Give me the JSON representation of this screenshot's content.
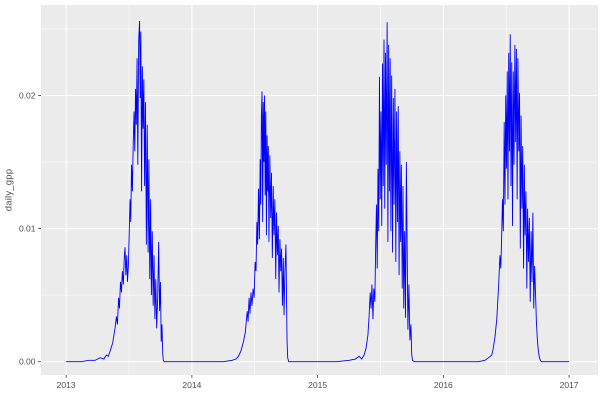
{
  "chart_data": {
    "type": "line",
    "title": "",
    "xlabel": "",
    "ylabel": "daily_gpp",
    "series_name": "daily_gpp",
    "legend": "none",
    "grid": "on",
    "style": "ggplot2",
    "line_color": "#0000ff",
    "panel_bg": "#ebebeb",
    "grid_color": "#ffffff",
    "axis_text_color": "#4d4d4d",
    "tick_mark_color": "#333333",
    "x_domain": [
      2012.8,
      2017.23
    ],
    "y_domain": [
      -0.001,
      0.0268
    ],
    "x_major_breaks": [
      2013,
      2014,
      2015,
      2016,
      2017
    ],
    "x_major_labels": [
      "2013",
      "2014",
      "2015",
      "2016",
      "2017"
    ],
    "x_minor_breaks": [
      2013.5,
      2014.5,
      2015.5,
      2016.5
    ],
    "y_major_breaks": [
      0,
      0.01,
      0.02
    ],
    "y_major_labels": [
      "0.00",
      "0.01",
      "0.02"
    ],
    "y_minor_breaks": [
      0.005,
      0.015,
      0.025
    ],
    "points": [
      [
        2013.0,
        0
      ],
      [
        2013.06,
        0
      ],
      [
        2013.12,
        0
      ],
      [
        2013.18,
        0.0001
      ],
      [
        2013.23,
        0.0001
      ],
      [
        2013.27,
        0.0003
      ],
      [
        2013.3,
        0.0002
      ],
      [
        2013.32,
        0.0005
      ],
      [
        2013.335,
        0.0004
      ],
      [
        2013.35,
        0.0008
      ],
      [
        2013.37,
        0.0014
      ],
      [
        2013.39,
        0.0026
      ],
      [
        2013.4,
        0.0034
      ],
      [
        2013.408,
        0.0028
      ],
      [
        2013.417,
        0.0048
      ],
      [
        2013.424,
        0.004
      ],
      [
        2013.432,
        0.006
      ],
      [
        2013.44,
        0.0052
      ],
      [
        2013.447,
        0.0068
      ],
      [
        2013.455,
        0.0058
      ],
      [
        2013.462,
        0.0078
      ],
      [
        2013.468,
        0.0086
      ],
      [
        2013.475,
        0.0065
      ],
      [
        2013.482,
        0.008
      ],
      [
        2013.488,
        0.006
      ],
      [
        2013.495,
        0.0072
      ],
      [
        2013.502,
        0.0098
      ],
      [
        2013.508,
        0.0122
      ],
      [
        2013.514,
        0.0105
      ],
      [
        2013.52,
        0.0148
      ],
      [
        2013.527,
        0.0128
      ],
      [
        2013.533,
        0.0162
      ],
      [
        2013.54,
        0.0188
      ],
      [
        2013.546,
        0.0158
      ],
      [
        2013.552,
        0.0205
      ],
      [
        2013.558,
        0.0178
      ],
      [
        2013.564,
        0.0228
      ],
      [
        2013.57,
        0.0148
      ],
      [
        2013.577,
        0.0242
      ],
      [
        2013.584,
        0.0256
      ],
      [
        2013.589,
        0.0198
      ],
      [
        2013.594,
        0.0248
      ],
      [
        2013.6,
        0.0128
      ],
      [
        2013.606,
        0.0222
      ],
      [
        2013.612,
        0.0175
      ],
      [
        2013.618,
        0.0212
      ],
      [
        2013.624,
        0.0132
      ],
      [
        2013.631,
        0.0195
      ],
      [
        2013.638,
        0.0088
      ],
      [
        2013.645,
        0.0178
      ],
      [
        2013.652,
        0.0082
      ],
      [
        2013.658,
        0.0152
      ],
      [
        2013.665,
        0.0062
      ],
      [
        2013.672,
        0.0122
      ],
      [
        2013.678,
        0.005
      ],
      [
        2013.685,
        0.0098
      ],
      [
        2013.692,
        0.0042
      ],
      [
        2013.699,
        0.008
      ],
      [
        2013.706,
        0.0032
      ],
      [
        2013.713,
        0.0062
      ],
      [
        2013.72,
        0.0025
      ],
      [
        2013.728,
        0.0048
      ],
      [
        2013.736,
        0.009
      ],
      [
        2013.743,
        0.0038
      ],
      [
        2013.75,
        0.006
      ],
      [
        2013.756,
        0.0015
      ],
      [
        2013.762,
        0.0028
      ],
      [
        2013.768,
        0.0006
      ],
      [
        2013.773,
        0.0001
      ],
      [
        2013.78,
        0
      ],
      [
        2013.85,
        0
      ],
      [
        2013.95,
        0
      ],
      [
        2014.05,
        0
      ],
      [
        2014.15,
        0
      ],
      [
        2014.25,
        0
      ],
      [
        2014.32,
        0.0001
      ],
      [
        2014.35,
        0.0002
      ],
      [
        2014.37,
        0.0004
      ],
      [
        2014.39,
        0.0008
      ],
      [
        2014.41,
        0.0015
      ],
      [
        2014.425,
        0.0022
      ],
      [
        2014.44,
        0.0038
      ],
      [
        2014.447,
        0.003
      ],
      [
        2014.455,
        0.0048
      ],
      [
        2014.462,
        0.0036
      ],
      [
        2014.47,
        0.0052
      ],
      [
        2014.478,
        0.0042
      ],
      [
        2014.487,
        0.0055
      ],
      [
        2014.495,
        0.0048
      ],
      [
        2014.503,
        0.0075
      ],
      [
        2014.51,
        0.0068
      ],
      [
        2014.517,
        0.0105
      ],
      [
        2014.523,
        0.0088
      ],
      [
        2014.53,
        0.013
      ],
      [
        2014.537,
        0.0092
      ],
      [
        2014.543,
        0.0152
      ],
      [
        2014.548,
        0.0118
      ],
      [
        2014.553,
        0.0185
      ],
      [
        2014.558,
        0.0203
      ],
      [
        2014.563,
        0.0105
      ],
      [
        2014.568,
        0.0195
      ],
      [
        2014.573,
        0.015
      ],
      [
        2014.578,
        0.02
      ],
      [
        2014.583,
        0.0125
      ],
      [
        2014.588,
        0.0188
      ],
      [
        2014.593,
        0.0095
      ],
      [
        2014.598,
        0.017
      ],
      [
        2014.603,
        0.0128
      ],
      [
        2014.608,
        0.0162
      ],
      [
        2014.613,
        0.009
      ],
      [
        2014.62,
        0.0155
      ],
      [
        2014.627,
        0.0108
      ],
      [
        2014.633,
        0.0142
      ],
      [
        2014.64,
        0.0078
      ],
      [
        2014.647,
        0.0132
      ],
      [
        2014.653,
        0.0095
      ],
      [
        2014.66,
        0.0122
      ],
      [
        2014.667,
        0.0062
      ],
      [
        2014.673,
        0.0112
      ],
      [
        2014.68,
        0.008
      ],
      [
        2014.687,
        0.0102
      ],
      [
        2014.693,
        0.0052
      ],
      [
        2014.7,
        0.0092
      ],
      [
        2014.707,
        0.0068
      ],
      [
        2014.713,
        0.0085
      ],
      [
        2014.72,
        0.0042
      ],
      [
        2014.727,
        0.0078
      ],
      [
        2014.733,
        0.0035
      ],
      [
        2014.74,
        0.0068
      ],
      [
        2014.748,
        0.0088
      ],
      [
        2014.753,
        0.0045
      ],
      [
        2014.757,
        0.0015
      ],
      [
        2014.762,
        0.0003
      ],
      [
        2014.77,
        0
      ],
      [
        2014.87,
        0
      ],
      [
        2014.97,
        0
      ],
      [
        2015.05,
        0
      ],
      [
        2015.15,
        0
      ],
      [
        2015.25,
        0.0001
      ],
      [
        2015.3,
        0.0002
      ],
      [
        2015.33,
        0.0004
      ],
      [
        2015.35,
        0.0002
      ],
      [
        2015.37,
        0.0005
      ],
      [
        2015.385,
        0.001
      ],
      [
        2015.4,
        0.002
      ],
      [
        2015.41,
        0.0035
      ],
      [
        2015.418,
        0.0052
      ],
      [
        2015.425,
        0.004
      ],
      [
        2015.432,
        0.0058
      ],
      [
        2015.44,
        0.0032
      ],
      [
        2015.447,
        0.0055
      ],
      [
        2015.455,
        0.0045
      ],
      [
        2015.462,
        0.0088
      ],
      [
        2015.468,
        0.0118
      ],
      [
        2015.474,
        0.007
      ],
      [
        2015.48,
        0.0145
      ],
      [
        2015.486,
        0.0098
      ],
      [
        2015.492,
        0.0214
      ],
      [
        2015.498,
        0.0122
      ],
      [
        2015.504,
        0.0188
      ],
      [
        2015.51,
        0.0102
      ],
      [
        2015.516,
        0.0224
      ],
      [
        2015.522,
        0.0132
      ],
      [
        2015.528,
        0.0242
      ],
      [
        2015.534,
        0.0115
      ],
      [
        2015.54,
        0.0232
      ],
      [
        2015.546,
        0.0148
      ],
      [
        2015.553,
        0.0255
      ],
      [
        2015.559,
        0.009
      ],
      [
        2015.565,
        0.0238
      ],
      [
        2015.571,
        0.0128
      ],
      [
        2015.577,
        0.0228
      ],
      [
        2015.583,
        0.0098
      ],
      [
        2015.589,
        0.0215
      ],
      [
        2015.596,
        0.0082
      ],
      [
        2015.602,
        0.0198
      ],
      [
        2015.608,
        0.0118
      ],
      [
        2015.615,
        0.0205
      ],
      [
        2015.622,
        0.0075
      ],
      [
        2015.628,
        0.0188
      ],
      [
        2015.635,
        0.0105
      ],
      [
        2015.641,
        0.0192
      ],
      [
        2015.648,
        0.0065
      ],
      [
        2015.654,
        0.0158
      ],
      [
        2015.66,
        0.009
      ],
      [
        2015.666,
        0.0148
      ],
      [
        2015.673,
        0.0055
      ],
      [
        2015.679,
        0.0132
      ],
      [
        2015.685,
        0.004
      ],
      [
        2015.692,
        0.0098
      ],
      [
        2015.699,
        0.0033
      ],
      [
        2015.706,
        0.015
      ],
      [
        2015.712,
        0.0088
      ],
      [
        2015.718,
        0.0024
      ],
      [
        2015.726,
        0.0058
      ],
      [
        2015.734,
        0.0016
      ],
      [
        2015.742,
        0.0028
      ],
      [
        2015.748,
        0.0006
      ],
      [
        2015.755,
        0.0001
      ],
      [
        2015.77,
        0
      ],
      [
        2015.88,
        0
      ],
      [
        2015.97,
        0
      ],
      [
        2016.08,
        0
      ],
      [
        2016.18,
        0
      ],
      [
        2016.28,
        0
      ],
      [
        2016.33,
        0.0001
      ],
      [
        2016.36,
        0.0003
      ],
      [
        2016.385,
        0.0005
      ],
      [
        2016.395,
        0.0009
      ],
      [
        2016.41,
        0.0018
      ],
      [
        2016.425,
        0.0032
      ],
      [
        2016.44,
        0.0058
      ],
      [
        2016.45,
        0.008
      ],
      [
        2016.457,
        0.007
      ],
      [
        2016.464,
        0.0095
      ],
      [
        2016.47,
        0.0122
      ],
      [
        2016.477,
        0.0098
      ],
      [
        2016.484,
        0.018
      ],
      [
        2016.49,
        0.0118
      ],
      [
        2016.496,
        0.02
      ],
      [
        2016.502,
        0.0145
      ],
      [
        2016.508,
        0.0218
      ],
      [
        2016.514,
        0.0122
      ],
      [
        2016.52,
        0.0232
      ],
      [
        2016.526,
        0.0158
      ],
      [
        2016.532,
        0.0246
      ],
      [
        2016.538,
        0.0132
      ],
      [
        2016.544,
        0.0225
      ],
      [
        2016.55,
        0.0102
      ],
      [
        2016.556,
        0.0218
      ],
      [
        2016.562,
        0.0148
      ],
      [
        2016.569,
        0.0238
      ],
      [
        2016.575,
        0.0165
      ],
      [
        2016.581,
        0.0235
      ],
      [
        2016.587,
        0.0122
      ],
      [
        2016.593,
        0.0228
      ],
      [
        2016.6,
        0.0158
      ],
      [
        2016.606,
        0.0202
      ],
      [
        2016.612,
        0.0085
      ],
      [
        2016.618,
        0.0185
      ],
      [
        2016.625,
        0.0115
      ],
      [
        2016.631,
        0.0162
      ],
      [
        2016.638,
        0.007
      ],
      [
        2016.644,
        0.0148
      ],
      [
        2016.65,
        0.0095
      ],
      [
        2016.657,
        0.0128
      ],
      [
        2016.664,
        0.0055
      ],
      [
        2016.67,
        0.0115
      ],
      [
        2016.677,
        0.0075
      ],
      [
        2016.684,
        0.0108
      ],
      [
        2016.691,
        0.0045
      ],
      [
        2016.698,
        0.0098
      ],
      [
        2016.705,
        0.006
      ],
      [
        2016.712,
        0.0112
      ],
      [
        2016.719,
        0.004
      ],
      [
        2016.726,
        0.0072
      ],
      [
        2016.733,
        0.0052
      ],
      [
        2016.74,
        0.003
      ],
      [
        2016.748,
        0.0016
      ],
      [
        2016.756,
        0.0008
      ],
      [
        2016.764,
        0.0003
      ],
      [
        2016.772,
        0.0001
      ],
      [
        2016.78,
        0
      ],
      [
        2016.86,
        0
      ],
      [
        2016.94,
        0
      ],
      [
        2017.0,
        0
      ]
    ]
  }
}
